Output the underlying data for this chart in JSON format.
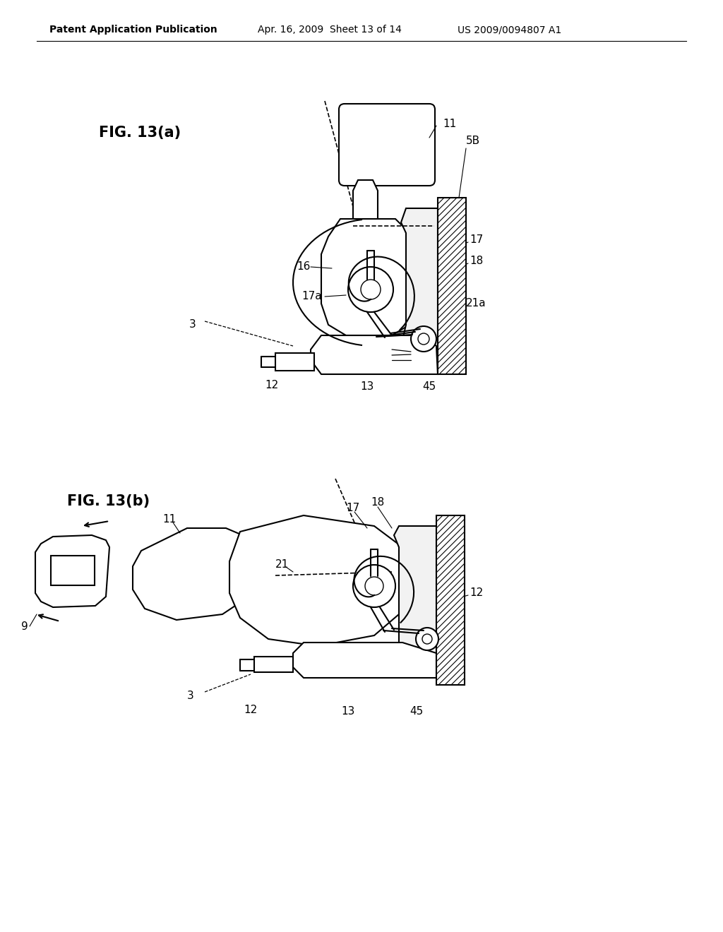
{
  "bg_color": "#ffffff",
  "line_color": "#000000",
  "header_text": "Patent Application Publication",
  "header_date": "Apr. 16, 2009  Sheet 13 of 14",
  "header_patent": "US 2009/0094807 A1",
  "fig_a_label": "FIG. 13(a)",
  "fig_b_label": "FIG. 13(b)"
}
